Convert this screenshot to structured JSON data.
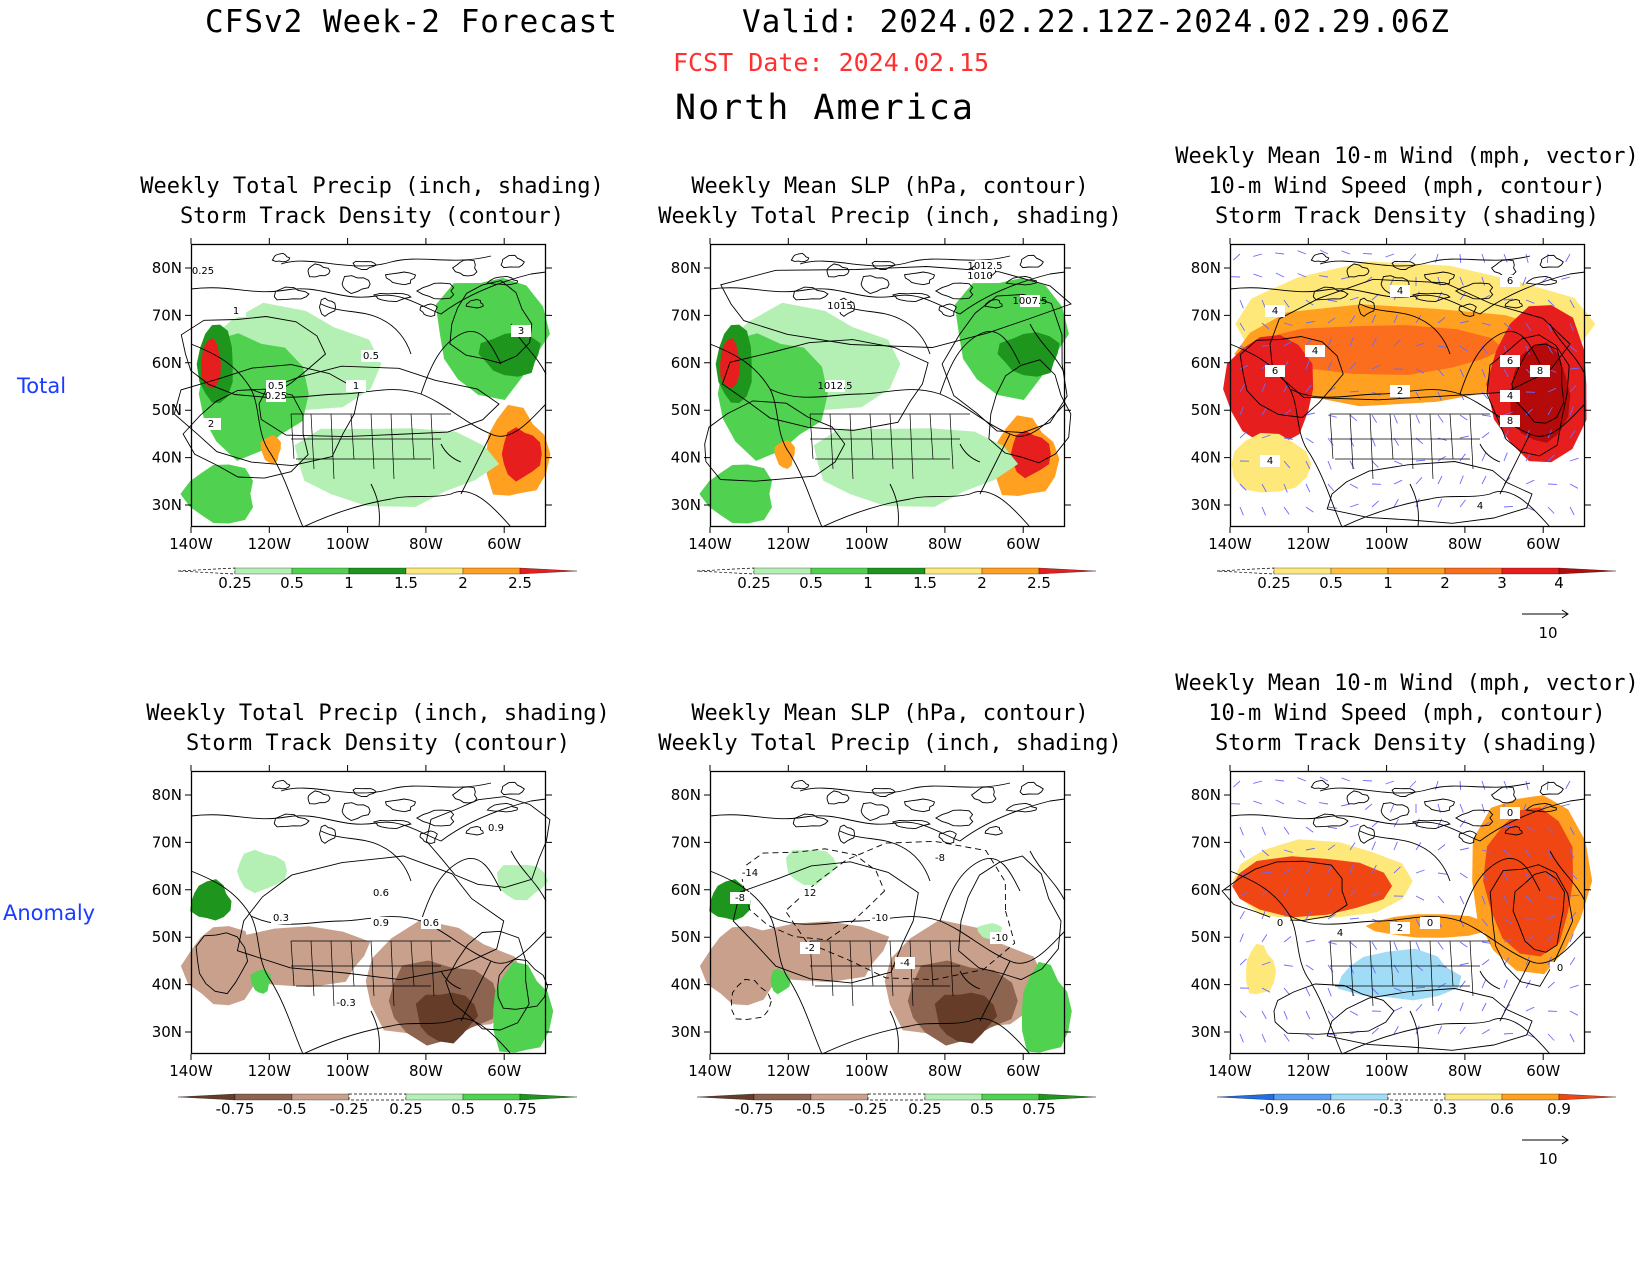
{
  "header": {
    "title": "CFSv2 Week-2 Forecast",
    "valid": "Valid: 2024.02.22.12Z-2024.02.29.06Z",
    "fcst_date": "FCST Date: 2024.02.15",
    "region": "North America"
  },
  "rows": {
    "total": "Total",
    "anomaly": "Anomaly"
  },
  "axes": {
    "lat": [
      "80N",
      "70N",
      "60N",
      "50N",
      "40N",
      "30N"
    ],
    "lon": [
      "140W",
      "120W",
      "100W",
      "80W",
      "60W"
    ]
  },
  "colors": {
    "title_red": "#ff3030",
    "row_label_blue": "#1a3cff",
    "wind_vector": "#6a6aff"
  },
  "panels": [
    {
      "id": "total-precip",
      "title": [
        "Weekly Total Precip (inch, shading)",
        "Storm Track Density (contour)"
      ],
      "contour_labels": [
        "0.25",
        "1",
        "0.5",
        "0.5",
        "0.25",
        "1",
        "2",
        "3"
      ],
      "colorbar": {
        "labels": [
          "0.25",
          "0.5",
          "1",
          "1.5",
          "2",
          "2.5"
        ],
        "colors": [
          "#ffffff",
          "#b4f0b4",
          "#50d250",
          "#1e961e",
          "#ffe87a",
          "#ffa020",
          "#e61e1e"
        ]
      }
    },
    {
      "id": "total-slp",
      "title": [
        "Weekly Mean SLP (hPa, contour)",
        "Weekly Total Precip (inch, shading)"
      ],
      "contour_labels": [
        "1012.5",
        "1010",
        "1015",
        "1007.5",
        "1012.5"
      ],
      "colorbar": {
        "labels": [
          "0.25",
          "0.5",
          "1",
          "1.5",
          "2",
          "2.5"
        ],
        "colors": [
          "#ffffff",
          "#b4f0b4",
          "#50d250",
          "#1e961e",
          "#ffe87a",
          "#ffa020",
          "#e61e1e"
        ]
      }
    },
    {
      "id": "total-wind",
      "title": [
        "Weekly Mean 10-m Wind (mph, vector)",
        "10-m Wind Speed (mph, contour)",
        "Storm Track Density (shading)"
      ],
      "contour_labels": [
        "4",
        "4",
        "6",
        "4",
        "2",
        "6",
        "8",
        "4",
        "8",
        "4",
        "4",
        "6"
      ],
      "colorbar": {
        "labels": [
          "0.25",
          "0.5",
          "1",
          "2",
          "3",
          "4"
        ],
        "colors": [
          "#ffffff",
          "#ffe87a",
          "#ffc03c",
          "#ffa020",
          "#fa6e1e",
          "#e61e1e",
          "#b40a0a"
        ]
      },
      "vector_ref": "10"
    },
    {
      "id": "anom-precip",
      "title": [
        "Weekly Total Precip (inch, shading)",
        "Storm Track Density (contour)"
      ],
      "contour_labels": [
        "0.9",
        "0.6",
        "0.9",
        "0.6",
        "0.3",
        "-0.3"
      ],
      "colorbar": {
        "labels": [
          "-0.75",
          "-0.5",
          "-0.25",
          "0.25",
          "0.5",
          "0.75"
        ],
        "colors": [
          "#643c28",
          "#8c6450",
          "#c8a08c",
          "#ffffff",
          "#b4f0b4",
          "#50d250",
          "#1e961e"
        ]
      }
    },
    {
      "id": "anom-slp",
      "title": [
        "Weekly Mean SLP (hPa, contour)",
        "Weekly Total Precip (inch, shading)"
      ],
      "contour_labels": [
        "-14",
        "-8",
        "12",
        "-10",
        "-2",
        "-4",
        "-8",
        "-10"
      ],
      "colorbar": {
        "labels": [
          "-0.75",
          "-0.5",
          "-0.25",
          "0.25",
          "0.5",
          "0.75"
        ],
        "colors": [
          "#643c28",
          "#8c6450",
          "#c8a08c",
          "#ffffff",
          "#b4f0b4",
          "#50d250",
          "#1e961e"
        ]
      }
    },
    {
      "id": "anom-wind",
      "title": [
        "Weekly Mean 10-m Wind (mph, vector)",
        "10-m Wind Speed (mph, contour)",
        "Storm Track Density (shading)"
      ],
      "contour_labels": [
        "0",
        "0",
        "4",
        "2",
        "0",
        "0"
      ],
      "colorbar": {
        "labels": [
          "-0.9",
          "-0.6",
          "-0.3",
          "0.3",
          "0.6",
          "0.9"
        ],
        "colors": [
          "#1e6ee6",
          "#5aa0f0",
          "#a0dcf5",
          "#ffffff",
          "#ffe87a",
          "#ffa020",
          "#f04614"
        ]
      },
      "vector_ref": "10"
    }
  ]
}
